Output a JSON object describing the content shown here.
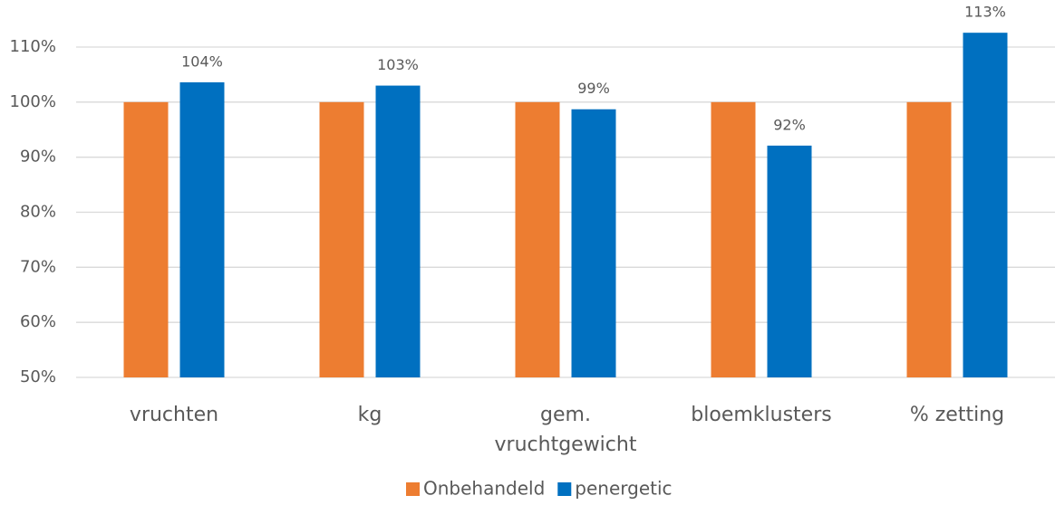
{
  "chart_data": {
    "type": "bar",
    "categories": [
      "vruchten",
      "kg",
      "gem. vruchtgewicht",
      "bloemklusters",
      "% zetting"
    ],
    "series": [
      {
        "name": "Onbehandeld",
        "color": "#ed7d31",
        "values": [
          100,
          100,
          100,
          100,
          100
        ]
      },
      {
        "name": "penergetic",
        "color": "#0070c0",
        "values": [
          103.6,
          103.0,
          98.7,
          92.1,
          112.6
        ],
        "value_labels": [
          "104%",
          "103%",
          "99%",
          "92%",
          "113%"
        ]
      }
    ],
    "ylim": [
      50,
      118
    ],
    "yticks": [
      {
        "value": 50,
        "label": "50%"
      },
      {
        "value": 60,
        "label": "60%"
      },
      {
        "value": 70,
        "label": "70%"
      },
      {
        "value": 80,
        "label": "80%"
      },
      {
        "value": 90,
        "label": "90%"
      },
      {
        "value": 100,
        "label": "100%"
      },
      {
        "value": 110,
        "label": "110%"
      }
    ],
    "grid": true,
    "legend": "bottom"
  }
}
